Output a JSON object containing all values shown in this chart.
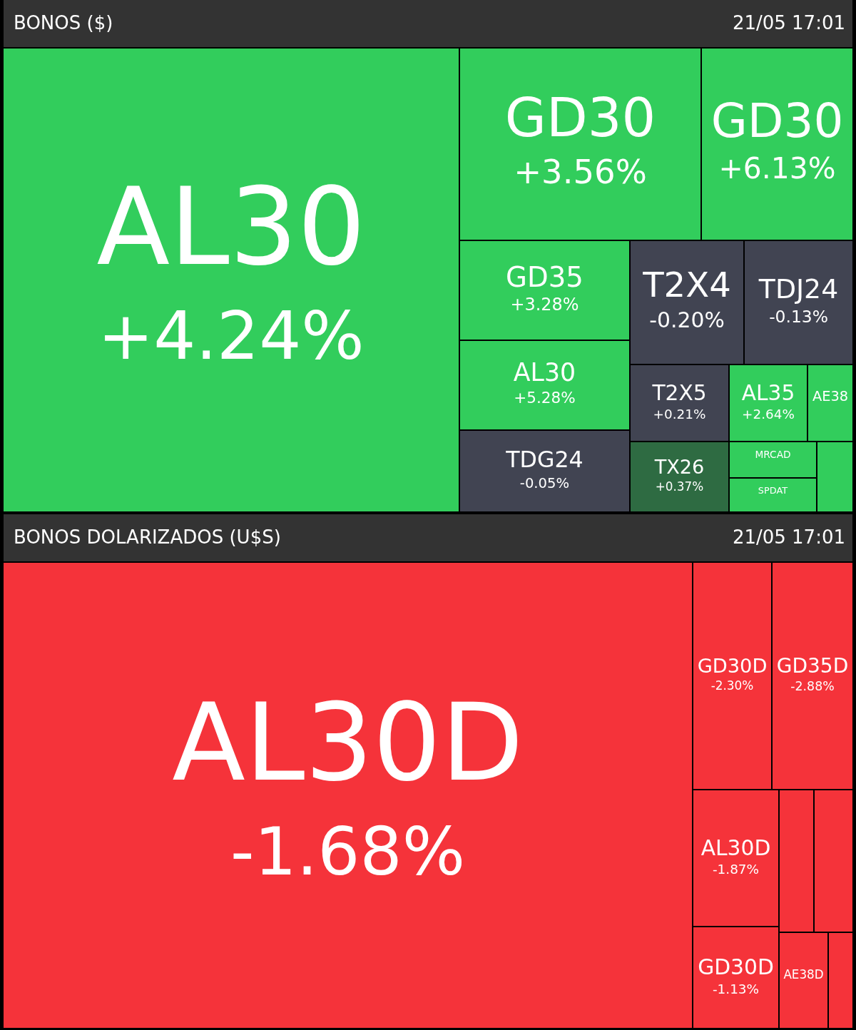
{
  "chart_data": [
    {
      "type": "other",
      "title": "BONOS ($)",
      "annotations": [
        "21/05  17:01"
      ],
      "categories": [
        "AL30",
        "GD30",
        "GD30",
        "GD35",
        "AL30",
        "TDG24",
        "T2X4",
        "TDJ24",
        "T2X5",
        "AL35",
        "AE38",
        "TX26",
        "MRCAD",
        "SPDAT",
        null
      ],
      "values": [
        4.24,
        3.56,
        6.13,
        3.28,
        5.28,
        -0.05,
        -0.2,
        -0.13,
        0.21,
        2.64,
        null,
        0.37,
        null,
        null,
        null
      ],
      "value_labels": [
        "+4.24%",
        "+3.56%",
        "+6.13%",
        "+3.28%",
        "+5.28%",
        "-0.05%",
        "-0.20%",
        "-0.13%",
        "+0.21%",
        "+2.64%",
        null,
        "+0.37%",
        null,
        null,
        null
      ],
      "colors": [
        "#32cd5c",
        "#32cd5c",
        "#32cd5c",
        "#32cd5c",
        "#32cd5c",
        "#414452",
        "#414452",
        "#414452",
        "#414452",
        "#32cd5c",
        "#32cd5c",
        "#2e6b42",
        "#32cd5c",
        "#32cd5c",
        "#32cd5c"
      ]
    },
    {
      "type": "other",
      "title": "BONOS DOLARIZADOS (U$S)",
      "annotations": [
        "21/05  17:01"
      ],
      "categories": [
        "AL30D",
        "GD30D",
        "GD35D",
        "AL30D",
        null,
        null,
        "GD30D",
        "AE38D",
        null
      ],
      "values": [
        -1.68,
        -2.3,
        -2.88,
        -1.87,
        null,
        null,
        -1.13,
        null,
        null
      ],
      "value_labels": [
        "-1.68%",
        "-2.30%",
        "-2.88%",
        "-1.87%",
        null,
        null,
        "-1.13%",
        null,
        null
      ],
      "colors": [
        "#f5333a",
        "#f5333a",
        "#f5333a",
        "#f5333a",
        "#f5333a",
        "#f5333a",
        "#f5333a",
        "#f5333a",
        "#f5333a"
      ]
    }
  ]
}
